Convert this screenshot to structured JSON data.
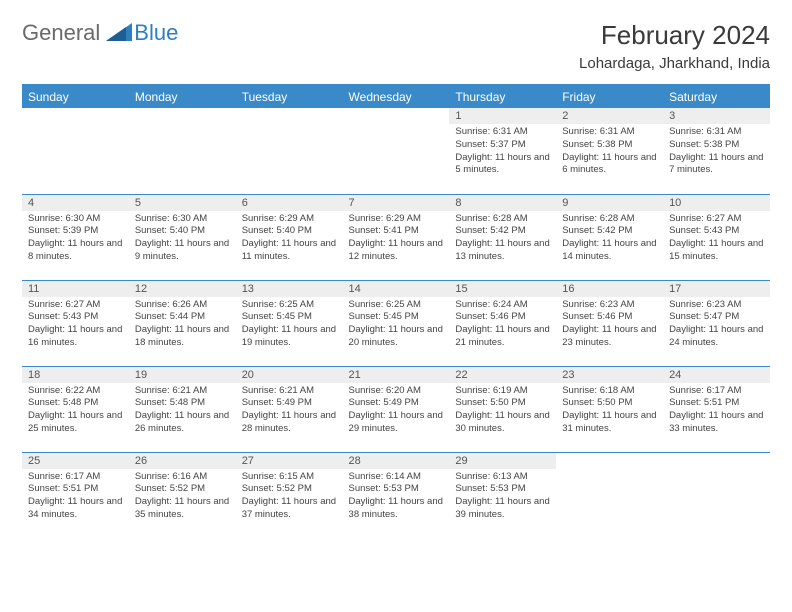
{
  "brand": {
    "part1": "General",
    "part2": "Blue"
  },
  "title": "February 2024",
  "location": "Lohardaga, Jharkhand, India",
  "colors": {
    "header_bg": "#3a8ac9",
    "header_text": "#ffffff",
    "daynum_bg": "#eeeeee",
    "text": "#444444",
    "brand_gray": "#6a6a6a",
    "brand_blue": "#2d7fbf"
  },
  "day_names": [
    "Sunday",
    "Monday",
    "Tuesday",
    "Wednesday",
    "Thursday",
    "Friday",
    "Saturday"
  ],
  "weeks": [
    [
      null,
      null,
      null,
      null,
      {
        "n": "1",
        "sr": "6:31 AM",
        "ss": "5:37 PM",
        "dl": "11 hours and 5 minutes."
      },
      {
        "n": "2",
        "sr": "6:31 AM",
        "ss": "5:38 PM",
        "dl": "11 hours and 6 minutes."
      },
      {
        "n": "3",
        "sr": "6:31 AM",
        "ss": "5:38 PM",
        "dl": "11 hours and 7 minutes."
      }
    ],
    [
      {
        "n": "4",
        "sr": "6:30 AM",
        "ss": "5:39 PM",
        "dl": "11 hours and 8 minutes."
      },
      {
        "n": "5",
        "sr": "6:30 AM",
        "ss": "5:40 PM",
        "dl": "11 hours and 9 minutes."
      },
      {
        "n": "6",
        "sr": "6:29 AM",
        "ss": "5:40 PM",
        "dl": "11 hours and 11 minutes."
      },
      {
        "n": "7",
        "sr": "6:29 AM",
        "ss": "5:41 PM",
        "dl": "11 hours and 12 minutes."
      },
      {
        "n": "8",
        "sr": "6:28 AM",
        "ss": "5:42 PM",
        "dl": "11 hours and 13 minutes."
      },
      {
        "n": "9",
        "sr": "6:28 AM",
        "ss": "5:42 PM",
        "dl": "11 hours and 14 minutes."
      },
      {
        "n": "10",
        "sr": "6:27 AM",
        "ss": "5:43 PM",
        "dl": "11 hours and 15 minutes."
      }
    ],
    [
      {
        "n": "11",
        "sr": "6:27 AM",
        "ss": "5:43 PM",
        "dl": "11 hours and 16 minutes."
      },
      {
        "n": "12",
        "sr": "6:26 AM",
        "ss": "5:44 PM",
        "dl": "11 hours and 18 minutes."
      },
      {
        "n": "13",
        "sr": "6:25 AM",
        "ss": "5:45 PM",
        "dl": "11 hours and 19 minutes."
      },
      {
        "n": "14",
        "sr": "6:25 AM",
        "ss": "5:45 PM",
        "dl": "11 hours and 20 minutes."
      },
      {
        "n": "15",
        "sr": "6:24 AM",
        "ss": "5:46 PM",
        "dl": "11 hours and 21 minutes."
      },
      {
        "n": "16",
        "sr": "6:23 AM",
        "ss": "5:46 PM",
        "dl": "11 hours and 23 minutes."
      },
      {
        "n": "17",
        "sr": "6:23 AM",
        "ss": "5:47 PM",
        "dl": "11 hours and 24 minutes."
      }
    ],
    [
      {
        "n": "18",
        "sr": "6:22 AM",
        "ss": "5:48 PM",
        "dl": "11 hours and 25 minutes."
      },
      {
        "n": "19",
        "sr": "6:21 AM",
        "ss": "5:48 PM",
        "dl": "11 hours and 26 minutes."
      },
      {
        "n": "20",
        "sr": "6:21 AM",
        "ss": "5:49 PM",
        "dl": "11 hours and 28 minutes."
      },
      {
        "n": "21",
        "sr": "6:20 AM",
        "ss": "5:49 PM",
        "dl": "11 hours and 29 minutes."
      },
      {
        "n": "22",
        "sr": "6:19 AM",
        "ss": "5:50 PM",
        "dl": "11 hours and 30 minutes."
      },
      {
        "n": "23",
        "sr": "6:18 AM",
        "ss": "5:50 PM",
        "dl": "11 hours and 31 minutes."
      },
      {
        "n": "24",
        "sr": "6:17 AM",
        "ss": "5:51 PM",
        "dl": "11 hours and 33 minutes."
      }
    ],
    [
      {
        "n": "25",
        "sr": "6:17 AM",
        "ss": "5:51 PM",
        "dl": "11 hours and 34 minutes."
      },
      {
        "n": "26",
        "sr": "6:16 AM",
        "ss": "5:52 PM",
        "dl": "11 hours and 35 minutes."
      },
      {
        "n": "27",
        "sr": "6:15 AM",
        "ss": "5:52 PM",
        "dl": "11 hours and 37 minutes."
      },
      {
        "n": "28",
        "sr": "6:14 AM",
        "ss": "5:53 PM",
        "dl": "11 hours and 38 minutes."
      },
      {
        "n": "29",
        "sr": "6:13 AM",
        "ss": "5:53 PM",
        "dl": "11 hours and 39 minutes."
      },
      null,
      null
    ]
  ],
  "labels": {
    "sunrise": "Sunrise: ",
    "sunset": "Sunset: ",
    "daylight": "Daylight: "
  }
}
